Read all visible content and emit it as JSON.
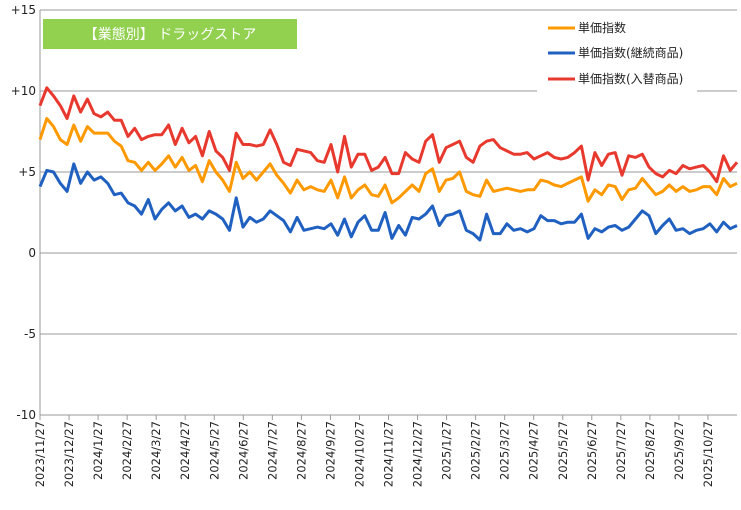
{
  "chart_data": {
    "type": "line",
    "title": "【業態別】 ドラッグストア",
    "title_bg": "#92D050",
    "ylim": [
      -10,
      15
    ],
    "yticks": [
      15,
      10,
      5,
      0,
      -5,
      -10
    ],
    "ytick_labels": [
      "+15",
      "+10",
      "+5",
      "0",
      "-5",
      "-10"
    ],
    "grid": true,
    "legend_position": "top-right",
    "x_labels": [
      "2023/11/27",
      "2023/12/27",
      "2024/1/27",
      "2024/2/27",
      "2024/3/27",
      "2024/4/27",
      "2024/5/27",
      "2024/6/27",
      "2024/7/27",
      "2024/8/27",
      "2024/9/27",
      "2024/10/27",
      "2024/11/27",
      "2024/12/27",
      "2025/1/27",
      "2025/2/27",
      "2025/3/27",
      "2025/4/27",
      "2025/5/27",
      "2025/6/27",
      "2025/7/27",
      "2025/8/27",
      "2025/9/27",
      "2025/10/27"
    ],
    "series": [
      {
        "name": "単価指数",
        "color": "#FF9900",
        "values": [
          7.0,
          8.3,
          7.8,
          7.0,
          6.7,
          7.9,
          6.9,
          7.8,
          7.4,
          7.4,
          7.4,
          6.9,
          6.6,
          5.7,
          5.6,
          5.1,
          5.6,
          5.1,
          5.5,
          6.0,
          5.3,
          5.9,
          5.1,
          5.4,
          4.4,
          5.7,
          5.0,
          4.5,
          3.8,
          5.6,
          4.6,
          5.0,
          4.5,
          5.0,
          5.5,
          4.8,
          4.3,
          3.7,
          4.5,
          3.9,
          4.1,
          3.9,
          3.8,
          4.5,
          3.4,
          4.7,
          3.4,
          3.9,
          4.2,
          3.6,
          3.5,
          4.2,
          3.1,
          3.4,
          3.8,
          4.2,
          3.8,
          4.9,
          5.2,
          3.8,
          4.5,
          4.6,
          5.0,
          3.8,
          3.6,
          3.5,
          4.5,
          3.8,
          3.9,
          4.0,
          3.9,
          3.8,
          3.9,
          3.9,
          4.5,
          4.4,
          4.2,
          4.1,
          4.3,
          4.5,
          4.7,
          3.2,
          3.9,
          3.6,
          4.2,
          4.1,
          3.3,
          3.9,
          4.0,
          4.6,
          4.1,
          3.6,
          3.8,
          4.2,
          3.8,
          4.1,
          3.8,
          3.9,
          4.1,
          4.1,
          3.6,
          4.6,
          4.1,
          4.3
        ]
      },
      {
        "name": "単価指数(継続商品)",
        "color": "#2060C0",
        "values": [
          4.1,
          5.1,
          5.0,
          4.3,
          3.8,
          5.5,
          4.3,
          5.0,
          4.5,
          4.7,
          4.3,
          3.6,
          3.7,
          3.1,
          2.9,
          2.4,
          3.3,
          2.1,
          2.7,
          3.1,
          2.6,
          2.9,
          2.2,
          2.4,
          2.1,
          2.6,
          2.4,
          2.1,
          1.4,
          3.4,
          1.6,
          2.2,
          1.9,
          2.1,
          2.6,
          2.3,
          2.0,
          1.3,
          2.2,
          1.4,
          1.5,
          1.6,
          1.5,
          1.8,
          1.1,
          2.1,
          1.0,
          1.9,
          2.3,
          1.4,
          1.4,
          2.5,
          0.9,
          1.7,
          1.1,
          2.2,
          2.1,
          2.4,
          2.9,
          1.7,
          2.3,
          2.4,
          2.6,
          1.4,
          1.2,
          0.8,
          2.4,
          1.2,
          1.2,
          1.8,
          1.4,
          1.5,
          1.3,
          1.5,
          2.3,
          2.0,
          2.0,
          1.8,
          1.9,
          1.9,
          2.4,
          0.9,
          1.5,
          1.3,
          1.6,
          1.7,
          1.4,
          1.6,
          2.1,
          2.6,
          2.3,
          1.2,
          1.7,
          2.1,
          1.4,
          1.5,
          1.2,
          1.4,
          1.5,
          1.8,
          1.3,
          1.9,
          1.5,
          1.7
        ]
      },
      {
        "name": "単価指数(入替商品)",
        "color": "#E8392F",
        "values": [
          9.1,
          10.2,
          9.7,
          9.1,
          8.3,
          9.7,
          8.7,
          9.5,
          8.6,
          8.4,
          8.7,
          8.2,
          8.2,
          7.2,
          7.7,
          7.0,
          7.2,
          7.3,
          7.3,
          7.9,
          6.7,
          7.7,
          6.8,
          7.2,
          6.0,
          7.5,
          6.3,
          5.9,
          5.1,
          7.4,
          6.7,
          6.7,
          6.6,
          6.7,
          7.6,
          6.7,
          5.6,
          5.4,
          6.4,
          6.3,
          6.2,
          5.7,
          5.6,
          6.7,
          5.0,
          7.2,
          5.3,
          6.1,
          6.1,
          5.1,
          5.3,
          5.9,
          4.9,
          4.9,
          6.2,
          5.8,
          5.6,
          6.9,
          7.3,
          5.6,
          6.5,
          6.7,
          6.9,
          5.9,
          5.6,
          6.6,
          6.9,
          7.0,
          6.5,
          6.3,
          6.1,
          6.1,
          6.2,
          5.8,
          6.0,
          6.2,
          5.9,
          5.8,
          5.9,
          6.2,
          6.6,
          4.5,
          6.2,
          5.4,
          6.1,
          6.2,
          4.8,
          6.0,
          5.9,
          6.1,
          5.3,
          4.9,
          4.7,
          5.1,
          4.9,
          5.4,
          5.2,
          5.3,
          5.4,
          5.0,
          4.4,
          6.0,
          5.1,
          5.6
        ]
      }
    ]
  }
}
